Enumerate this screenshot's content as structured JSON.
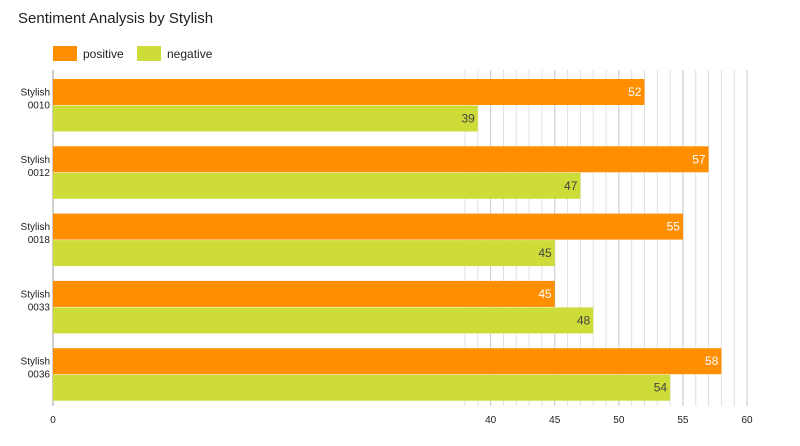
{
  "chart_data": {
    "type": "bar",
    "orientation": "horizontal",
    "title": "Sentiment Analysis by Stylish",
    "categories": [
      [
        "Stylish",
        "0010"
      ],
      [
        "Stylish",
        "0012"
      ],
      [
        "Stylish",
        "0018"
      ],
      [
        "Stylish",
        "0033"
      ],
      [
        "Stylish",
        "0036"
      ]
    ],
    "series": [
      {
        "name": "positive",
        "color": "#ff8f00",
        "values": [
          52,
          57,
          55,
          45,
          58
        ]
      },
      {
        "name": "negative",
        "color": "#cddc39",
        "values": [
          39,
          47,
          45,
          48,
          54
        ]
      }
    ],
    "x_ticks": [
      "0",
      "40",
      "45",
      "50",
      "55",
      "60"
    ],
    "legend": "top-left",
    "grid": true
  }
}
